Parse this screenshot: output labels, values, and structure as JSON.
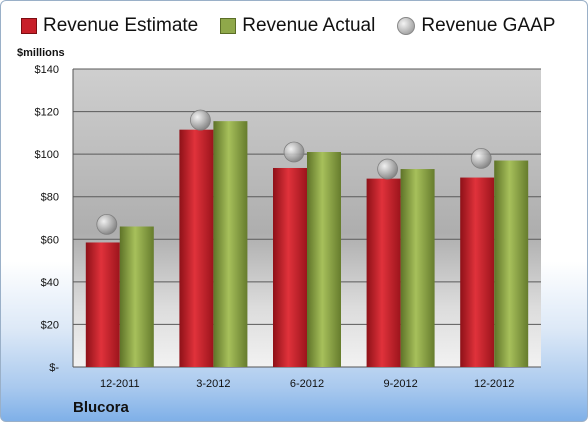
{
  "legend": {
    "estimate": "Revenue Estimate",
    "actual": "Revenue Actual",
    "gaap": "Revenue GAAP"
  },
  "unit_label": "$millions",
  "company": "Blucora",
  "colors": {
    "estimate": "#c8202a",
    "actual": "#8fa84a",
    "gaap": "#b0b0b0"
  },
  "chart_data": {
    "type": "bar",
    "categories": [
      "12-2011",
      "3-2012",
      "6-2012",
      "9-2012",
      "12-2012"
    ],
    "series": [
      {
        "name": "Revenue Estimate",
        "values": [
          58.5,
          111.5,
          93.5,
          88.5,
          89
        ]
      },
      {
        "name": "Revenue Actual",
        "values": [
          66,
          115.5,
          101,
          93,
          97
        ]
      },
      {
        "name": "Revenue GAAP",
        "values": [
          67,
          116,
          101,
          93,
          98
        ],
        "style": "marker"
      }
    ],
    "ylim": [
      0,
      140
    ],
    "yticks": [
      0,
      20,
      40,
      60,
      80,
      100,
      120,
      140
    ],
    "ytick_labels": [
      "$-",
      "$20",
      "$40",
      "$60",
      "$80",
      "$100",
      "$120",
      "$140"
    ],
    "grid": true,
    "legend_position": "top"
  }
}
